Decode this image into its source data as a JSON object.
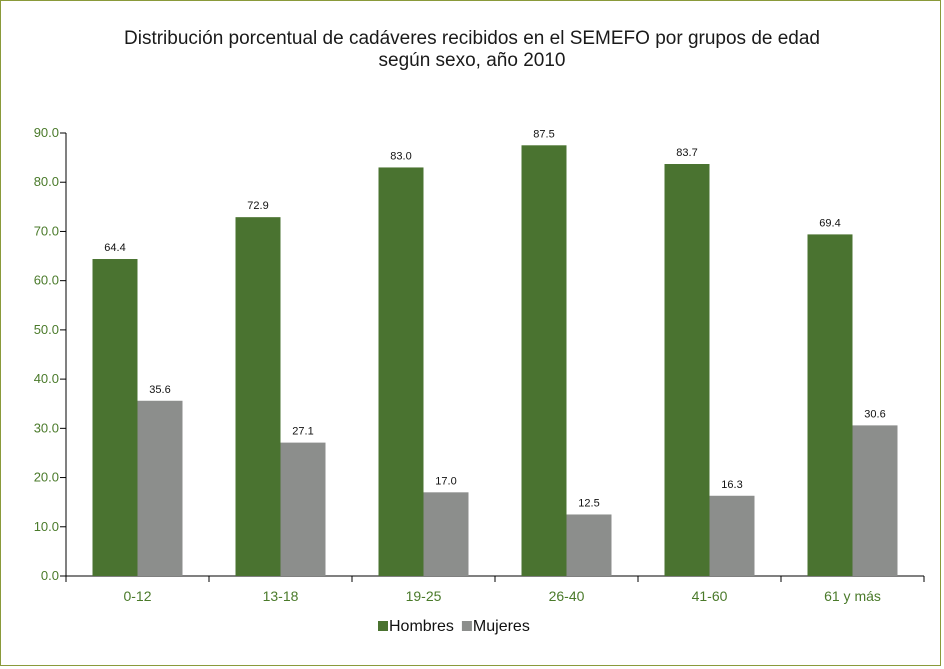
{
  "chart_data": {
    "type": "bar",
    "title": "Distribución porcentual de cadáveres recibidos en el SEMEFO  por grupos de edad",
    "subtitle": "según sexo, año 2010",
    "categories": [
      "0-12",
      "13-18",
      "19-25",
      "26-40",
      "41-60",
      "61 y más"
    ],
    "series": [
      {
        "name": "Hombres",
        "color": "#4a7330",
        "values": [
          64.4,
          72.9,
          83.0,
          87.5,
          83.7,
          69.4
        ]
      },
      {
        "name": "Mujeres",
        "color": "#8c8e8c",
        "values": [
          35.6,
          27.1,
          17.0,
          12.5,
          16.3,
          30.6
        ]
      }
    ],
    "ylim": [
      0,
      90
    ],
    "yticks": [
      "0.0",
      "10.0",
      "20.0",
      "30.0",
      "40.0",
      "50.0",
      "60.0",
      "70.0",
      "80.0",
      "90.0"
    ],
    "xlabel": "",
    "ylabel": "",
    "grid": false,
    "legend_position": "bottom"
  },
  "colors": {
    "axis_text": "#4a7a2a",
    "border": "#8a9a3a"
  }
}
